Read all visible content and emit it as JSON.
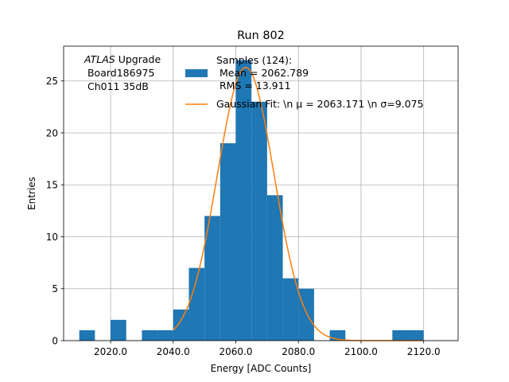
{
  "chart_data": {
    "type": "bar",
    "title": "Run 802",
    "xlabel": "Energy [ADC Counts]",
    "ylabel": "Entries",
    "xlim": [
      2005.0,
      2131.0
    ],
    "ylim": [
      0,
      28.35
    ],
    "grid": true,
    "x_ticks": [
      2020,
      2040,
      2060,
      2080,
      2100,
      2120
    ],
    "x_tick_labels": [
      "2020.0",
      "2040.0",
      "2060.0",
      "2080.0",
      "2100.0",
      "2120.0"
    ],
    "y_ticks": [
      0,
      5,
      10,
      15,
      20,
      25
    ],
    "y_tick_labels": [
      "0",
      "5",
      "10",
      "15",
      "20",
      "25"
    ],
    "annotation": {
      "atlas": "ATLAS",
      "line1_rest": " Upgrade",
      "line2": " Board186975",
      "line3": " Ch011 35dB"
    },
    "legend": {
      "location": "upper right",
      "hist_label_lines": [
        "Samples (124):",
        " Mean = 2062.789",
        " RMS = 13.911"
      ],
      "fit_label": "Gaussian Fit: \\n μ = 2063.171 \\n σ=9.075"
    },
    "series": [
      {
        "name": "Samples (124):\n Mean = 2062.789\n RMS = 13.911",
        "kind": "histogram",
        "color": "#1f77b4",
        "bins": [
          {
            "x0": 2010,
            "x1": 2015,
            "count": 1
          },
          {
            "x0": 2015,
            "x1": 2020,
            "count": 0
          },
          {
            "x0": 2020,
            "x1": 2025,
            "count": 2
          },
          {
            "x0": 2025,
            "x1": 2030,
            "count": 0
          },
          {
            "x0": 2030,
            "x1": 2035,
            "count": 1
          },
          {
            "x0": 2035,
            "x1": 2040,
            "count": 1
          },
          {
            "x0": 2040,
            "x1": 2045,
            "count": 3
          },
          {
            "x0": 2045,
            "x1": 2050,
            "count": 7
          },
          {
            "x0": 2050,
            "x1": 2055,
            "count": 12
          },
          {
            "x0": 2055,
            "x1": 2060,
            "count": 19
          },
          {
            "x0": 2060,
            "x1": 2065,
            "count": 27
          },
          {
            "x0": 2065,
            "x1": 2070,
            "count": 23
          },
          {
            "x0": 2070,
            "x1": 2075,
            "count": 14
          },
          {
            "x0": 2075,
            "x1": 2080,
            "count": 6
          },
          {
            "x0": 2080,
            "x1": 2085,
            "count": 5
          },
          {
            "x0": 2085,
            "x1": 2090,
            "count": 0
          },
          {
            "x0": 2090,
            "x1": 2095,
            "count": 1
          },
          {
            "x0": 2095,
            "x1": 2100,
            "count": 0
          },
          {
            "x0": 2100,
            "x1": 2105,
            "count": 0
          },
          {
            "x0": 2105,
            "x1": 2110,
            "count": 0
          },
          {
            "x0": 2110,
            "x1": 2115,
            "count": 1
          },
          {
            "x0": 2115,
            "x1": 2120,
            "count": 1
          }
        ]
      },
      {
        "name": "Gaussian Fit: \\n μ = 2063.171 \\n σ=9.075",
        "kind": "gaussian",
        "color": "#ff7f0e",
        "mu": 2063.171,
        "sigma": 9.075,
        "amplitude": 26.3,
        "x_range": [
          2040,
          2120
        ]
      }
    ]
  }
}
